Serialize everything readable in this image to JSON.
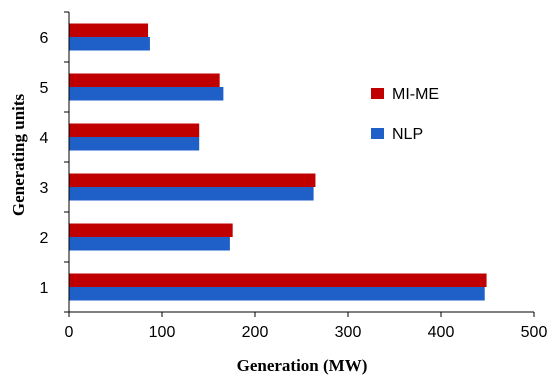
{
  "chart_data": {
    "type": "bar",
    "orientation": "horizontal",
    "categories": [
      "1",
      "2",
      "3",
      "4",
      "5",
      "6"
    ],
    "series": [
      {
        "name": "MI-ME",
        "color": "#C00000",
        "values": [
          449,
          176,
          265,
          140,
          162,
          85
        ]
      },
      {
        "name": "NLP",
        "color": "#1F5FC8",
        "values": [
          447,
          173,
          263,
          140,
          166,
          87
        ]
      }
    ],
    "xlabel": "Generation (MW)",
    "ylabel": "Generating units",
    "xlim": [
      0,
      500
    ],
    "xticks": [
      "0",
      "100",
      "200",
      "300",
      "400",
      "500"
    ],
    "grid": false,
    "legend_position": "right"
  }
}
